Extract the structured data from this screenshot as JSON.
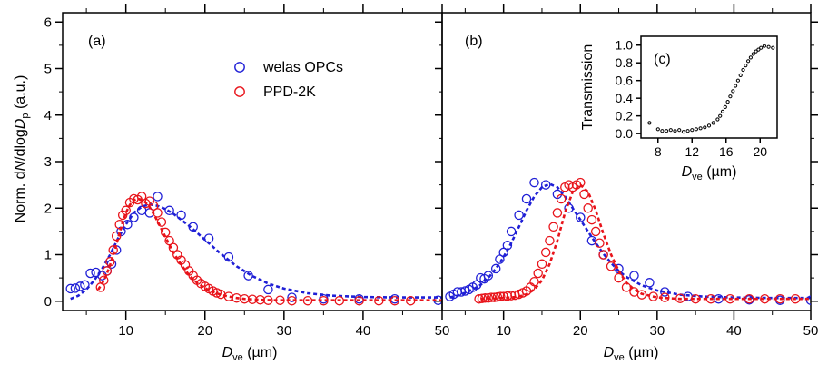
{
  "figure": {
    "ylabel": {
      "prefix": "Norm. d",
      "n": "N",
      "mid": "/dlog",
      "d": "D",
      "sub": "p",
      "unit": " (a.u.)"
    },
    "xlabel": {
      "d": "D",
      "sub": "ve",
      "unit": " (µm)"
    },
    "colors": {
      "welas": "#1f1fd6",
      "ppd": "#e8131a",
      "axis": "#000000"
    }
  },
  "chart_data": [
    {
      "panel": "a",
      "type": "scatter",
      "panel_label": "(a)",
      "xlim": [
        2,
        50
      ],
      "ylim": [
        -0.2,
        6.2
      ],
      "xticks": [
        10,
        20,
        30,
        40,
        50
      ],
      "yticks": [
        0,
        1,
        2,
        3,
        4,
        5,
        6
      ],
      "legend": {
        "placement": "top-center",
        "entries": [
          {
            "series": "welas",
            "label": "welas OPCs"
          },
          {
            "series": "ppd",
            "label": "PPD-2K"
          }
        ]
      },
      "series": [
        {
          "key": "welas",
          "name": "welas OPCs",
          "style": "markers",
          "x": [
            3,
            3.6,
            4.2,
            4.8,
            5.5,
            6.2,
            7,
            7.6,
            8.2,
            8.8,
            9.4,
            10.2,
            11,
            12,
            13,
            14,
            15.5,
            17,
            18.5,
            20.5,
            23,
            25.5,
            28,
            31,
            35,
            39.5,
            44,
            49.5
          ],
          "y": [
            0.27,
            0.28,
            0.32,
            0.35,
            0.6,
            0.62,
            0.55,
            0.65,
            0.8,
            1.1,
            1.5,
            1.65,
            1.8,
            1.95,
            1.9,
            2.25,
            1.95,
            1.85,
            1.6,
            1.35,
            0.95,
            0.55,
            0.25,
            0.08,
            0.05,
            0.05,
            0.05,
            0.02
          ]
        },
        {
          "key": "welas_fit",
          "name": "",
          "style": "dashed",
          "color_key": "welas",
          "x": [
            3,
            4,
            5,
            6,
            7,
            8,
            9,
            10,
            11,
            12,
            13,
            14,
            15,
            16,
            18,
            20,
            22,
            24,
            26,
            28,
            30,
            33,
            36,
            40,
            45,
            50
          ],
          "y": [
            0.05,
            0.12,
            0.25,
            0.45,
            0.7,
            1.0,
            1.35,
            1.65,
            1.9,
            2.03,
            2.08,
            2.05,
            1.98,
            1.88,
            1.62,
            1.32,
            1.02,
            0.75,
            0.54,
            0.38,
            0.27,
            0.17,
            0.12,
            0.09,
            0.08,
            0.08
          ]
        },
        {
          "key": "ppd",
          "name": "PPD-2K",
          "style": "markers",
          "x": [
            6.8,
            7.2,
            7.6,
            8.0,
            8.4,
            8.8,
            9.2,
            9.6,
            10.0,
            10.5,
            11.0,
            11.5,
            12.0,
            12.5,
            13.0,
            13.5,
            14.0,
            14.5,
            15.0,
            15.5,
            16.0,
            16.5,
            17.0,
            17.5,
            18.0,
            18.5,
            19.0,
            19.5,
            20.0,
            20.5,
            21.0,
            21.5,
            22.0,
            23.0,
            24.0,
            25.0,
            26.0,
            27.0,
            28.0,
            29.5,
            31.0,
            33.0,
            35.0,
            37.0,
            39.5,
            42.0,
            44.0,
            46.0
          ],
          "y": [
            0.3,
            0.45,
            0.65,
            0.85,
            1.1,
            1.4,
            1.65,
            1.85,
            1.95,
            2.12,
            2.2,
            2.18,
            2.25,
            2.1,
            2.15,
            2.05,
            1.9,
            1.7,
            1.48,
            1.3,
            1.15,
            1.0,
            0.88,
            0.78,
            0.65,
            0.55,
            0.45,
            0.38,
            0.32,
            0.27,
            0.22,
            0.18,
            0.15,
            0.1,
            0.07,
            0.05,
            0.04,
            0.03,
            0.02,
            0.02,
            0.01,
            0.01,
            0.01,
            0.01,
            0.01,
            0.01,
            0.01,
            0.01
          ]
        },
        {
          "key": "ppd_fit",
          "name": "",
          "style": "dashed",
          "color_key": "ppd",
          "x": [
            6.5,
            7,
            7.5,
            8,
            8.5,
            9,
            9.5,
            10,
            10.5,
            11,
            11.5,
            12,
            12.5,
            13,
            13.5,
            14,
            15,
            16,
            17,
            18,
            19,
            20,
            21,
            22,
            23,
            24,
            25,
            27,
            29,
            32,
            36,
            40,
            45,
            50
          ],
          "y": [
            0.25,
            0.38,
            0.55,
            0.78,
            1.05,
            1.35,
            1.65,
            1.9,
            2.07,
            2.17,
            2.2,
            2.18,
            2.12,
            2.02,
            1.88,
            1.72,
            1.38,
            1.05,
            0.78,
            0.56,
            0.4,
            0.28,
            0.2,
            0.14,
            0.1,
            0.07,
            0.05,
            0.03,
            0.02,
            0.02,
            0.02,
            0.02,
            0.02,
            0.02
          ]
        }
      ]
    },
    {
      "panel": "b",
      "type": "scatter",
      "panel_label": "(b)",
      "xlim": [
        2,
        50
      ],
      "ylim": [
        -0.2,
        6.2
      ],
      "xticks": [
        10,
        20,
        30,
        40,
        50
      ],
      "yticks": [
        0,
        1,
        2,
        3,
        4,
        5,
        6
      ],
      "series": [
        {
          "key": "welas",
          "name": "welas OPCs",
          "style": "markers",
          "x": [
            3,
            3.5,
            4,
            4.5,
            5,
            5.5,
            6,
            6.5,
            7,
            7.5,
            8,
            9,
            9.5,
            10,
            10.5,
            11,
            12,
            13,
            14,
            15.5,
            17,
            18.5,
            20,
            21.5,
            23,
            25,
            27,
            29,
            31,
            34,
            38,
            42,
            46,
            50
          ],
          "y": [
            0.1,
            0.15,
            0.2,
            0.2,
            0.22,
            0.25,
            0.3,
            0.35,
            0.5,
            0.48,
            0.55,
            0.7,
            0.9,
            1.05,
            1.2,
            1.5,
            1.85,
            2.2,
            2.55,
            2.5,
            2.3,
            2.0,
            1.8,
            1.3,
            1.0,
            0.7,
            0.55,
            0.4,
            0.2,
            0.1,
            0.05,
            0.03,
            0.02,
            0.02
          ]
        },
        {
          "key": "welas_fit",
          "name": "",
          "style": "dashed",
          "color_key": "welas",
          "x": [
            3,
            4,
            5,
            6,
            7,
            8,
            9,
            10,
            11,
            12,
            13,
            14,
            15,
            16,
            17,
            18,
            19,
            20,
            21,
            22,
            23,
            24,
            25,
            26,
            28,
            30,
            33,
            36,
            40,
            45,
            50
          ],
          "y": [
            0.08,
            0.12,
            0.18,
            0.25,
            0.35,
            0.5,
            0.7,
            0.95,
            1.25,
            1.6,
            1.95,
            2.25,
            2.45,
            2.52,
            2.45,
            2.25,
            2.0,
            1.75,
            1.5,
            1.25,
            1.02,
            0.82,
            0.65,
            0.52,
            0.34,
            0.23,
            0.14,
            0.1,
            0.08,
            0.07,
            0.07
          ]
        },
        {
          "key": "ppd",
          "name": "PPD-2K",
          "style": "markers",
          "x": [
            6.8,
            7.2,
            7.6,
            8.0,
            8.4,
            8.8,
            9.2,
            9.6,
            10.0,
            10.5,
            11.0,
            11.5,
            12.0,
            12.5,
            13.0,
            13.5,
            14.0,
            14.5,
            15.0,
            15.5,
            16.0,
            16.5,
            17.0,
            17.5,
            18.0,
            18.5,
            19.0,
            19.5,
            20.0,
            20.5,
            21.0,
            21.5,
            22.0,
            22.5,
            23.0,
            24.0,
            25.0,
            26.0,
            27.0,
            28.0,
            29.5,
            31.0,
            33.0,
            35.0,
            37.0,
            39.5,
            42.0,
            44.0,
            46.0,
            48.0
          ],
          "y": [
            0.05,
            0.06,
            0.07,
            0.07,
            0.08,
            0.08,
            0.09,
            0.1,
            0.1,
            0.11,
            0.12,
            0.13,
            0.15,
            0.18,
            0.22,
            0.3,
            0.42,
            0.6,
            0.8,
            1.05,
            1.3,
            1.6,
            1.9,
            2.2,
            2.45,
            2.5,
            2.45,
            2.5,
            2.55,
            2.3,
            2.0,
            1.75,
            1.5,
            1.25,
            1.0,
            0.75,
            0.5,
            0.3,
            0.2,
            0.14,
            0.1,
            0.08,
            0.06,
            0.05,
            0.05,
            0.05,
            0.05,
            0.05,
            0.05,
            0.05
          ]
        },
        {
          "key": "ppd_fit",
          "name": "",
          "style": "dashed",
          "color_key": "ppd",
          "x": [
            7,
            8,
            9,
            10,
            11,
            12,
            13,
            14,
            15,
            16,
            17,
            18,
            19,
            20,
            21,
            22,
            23,
            24,
            25,
            26,
            27,
            28,
            30,
            33,
            36,
            40,
            45,
            50
          ],
          "y": [
            0.05,
            0.05,
            0.06,
            0.07,
            0.08,
            0.1,
            0.15,
            0.25,
            0.45,
            0.8,
            1.3,
            1.9,
            2.35,
            2.5,
            2.35,
            1.95,
            1.45,
            1.0,
            0.65,
            0.4,
            0.25,
            0.16,
            0.08,
            0.05,
            0.05,
            0.05,
            0.05,
            0.05
          ]
        }
      ]
    },
    {
      "panel": "c",
      "type": "scatter",
      "panel_label": "(c)",
      "ylabel": "Transmission",
      "xlim": [
        6,
        22
      ],
      "ylim": [
        -0.05,
        1.1
      ],
      "xticks": [
        8,
        12,
        16,
        20
      ],
      "yticks": [
        0.0,
        0.2,
        0.4,
        0.6,
        0.8,
        1.0
      ],
      "ytick_labels": [
        "0.0",
        "0.2",
        "0.4",
        "0.6",
        "0.8",
        "1.0"
      ],
      "series": [
        {
          "key": "transmission",
          "name": "",
          "style": "markers",
          "x": [
            7.0,
            8.0,
            8.5,
            9.0,
            9.5,
            10.0,
            10.5,
            11.0,
            11.5,
            12.0,
            12.5,
            13.0,
            13.5,
            14.0,
            14.5,
            15.0,
            15.3,
            15.6,
            15.9,
            16.2,
            16.5,
            16.8,
            17.1,
            17.4,
            17.7,
            18.0,
            18.3,
            18.6,
            18.9,
            19.2,
            19.5,
            19.8,
            20.1,
            20.5,
            21.0,
            21.5
          ],
          "y": [
            0.12,
            0.05,
            0.03,
            0.03,
            0.04,
            0.03,
            0.04,
            0.02,
            0.03,
            0.04,
            0.05,
            0.06,
            0.07,
            0.09,
            0.12,
            0.16,
            0.2,
            0.25,
            0.3,
            0.36,
            0.42,
            0.48,
            0.54,
            0.6,
            0.66,
            0.72,
            0.77,
            0.82,
            0.86,
            0.9,
            0.93,
            0.95,
            0.97,
            0.99,
            0.98,
            0.97
          ]
        }
      ]
    }
  ]
}
